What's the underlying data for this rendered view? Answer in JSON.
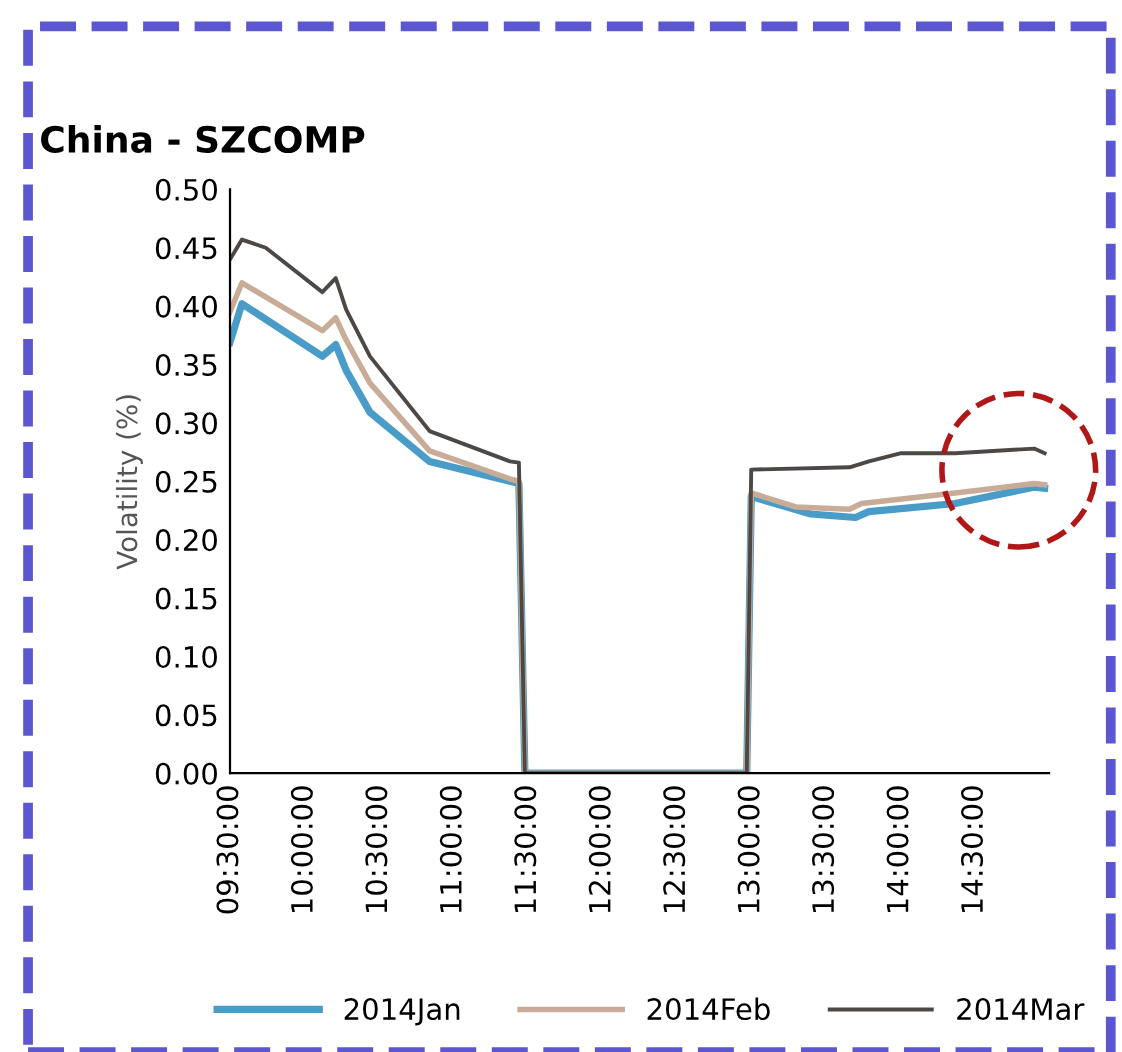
{
  "chart_data": {
    "type": "line",
    "title": "China - SZCOMP",
    "ylabel": "Volatility (%)",
    "xlim": [
      9.5,
      15.0
    ],
    "xticks": [
      {
        "value": 9.5,
        "label": "09:30:00"
      },
      {
        "value": 10.0,
        "label": "10:00:00"
      },
      {
        "value": 10.5,
        "label": "10:30:00"
      },
      {
        "value": 11.0,
        "label": "11:00:00"
      },
      {
        "value": 11.5,
        "label": "11:30:00"
      },
      {
        "value": 12.0,
        "label": "12:00:00"
      },
      {
        "value": 12.5,
        "label": "12:30:00"
      },
      {
        "value": 13.0,
        "label": "13:00:00"
      },
      {
        "value": 13.5,
        "label": "13:30:00"
      },
      {
        "value": 14.0,
        "label": "14:00:00"
      },
      {
        "value": 14.5,
        "label": "14:30:00"
      }
    ],
    "ylim": [
      0,
      0.5
    ],
    "yticks": [
      {
        "value": 0,
        "label": "0.00"
      },
      {
        "value": 0.05,
        "label": "0.05"
      },
      {
        "value": 0.1,
        "label": "0.10"
      },
      {
        "value": 0.15,
        "label": "0.15"
      },
      {
        "value": 0.2,
        "label": "0.20"
      },
      {
        "value": 0.25,
        "label": "0.25"
      },
      {
        "value": 0.3,
        "label": "0.30"
      },
      {
        "value": 0.35,
        "label": "0.35"
      },
      {
        "value": 0.4,
        "label": "0.40"
      },
      {
        "value": 0.45,
        "label": "0.45"
      },
      {
        "value": 0.5,
        "label": "0.50"
      }
    ],
    "grid": false,
    "legend": "bottom",
    "marker": "none",
    "line_style": "solid",
    "series": [
      {
        "name": "2014Jan",
        "color": "#4a9cc8",
        "x": [
          9.5,
          9.58,
          10.12,
          10.21,
          10.28,
          10.44,
          10.84,
          11.38,
          11.44,
          11.48,
          12.97,
          13.0,
          13.4,
          13.7,
          13.79,
          14.37,
          14.9,
          14.97
        ],
        "values": [
          0.369,
          0.402,
          0.357,
          0.367,
          0.345,
          0.309,
          0.267,
          0.25,
          0.248,
          0,
          0,
          0.237,
          0.222,
          0.219,
          0.224,
          0.231,
          0.245,
          0.244
        ]
      },
      {
        "name": "2014Feb",
        "color": "#c8ac98",
        "x": [
          9.5,
          9.58,
          10.12,
          10.21,
          10.28,
          10.44,
          10.84,
          11.38,
          11.44,
          11.48,
          12.97,
          13.0,
          13.3,
          13.66,
          13.74,
          14.37,
          14.9,
          14.97
        ],
        "values": [
          0.395,
          0.42,
          0.379,
          0.39,
          0.371,
          0.334,
          0.276,
          0.252,
          0.25,
          0,
          0,
          0.24,
          0.228,
          0.226,
          0.231,
          0.24,
          0.248,
          0.247
        ]
      },
      {
        "name": "2014Mar",
        "color": "#4d4843",
        "x": [
          9.5,
          9.58,
          9.74,
          10.12,
          10.21,
          10.28,
          10.44,
          10.84,
          11.38,
          11.44,
          11.48,
          12.97,
          13.0,
          13.66,
          13.79,
          14.0,
          14.37,
          14.9,
          14.97
        ],
        "values": [
          0.44,
          0.457,
          0.45,
          0.412,
          0.424,
          0.397,
          0.357,
          0.293,
          0.267,
          0.266,
          0,
          0,
          0.26,
          0.262,
          0.267,
          0.274,
          0.274,
          0.278,
          0.274
        ]
      }
    ]
  }
}
